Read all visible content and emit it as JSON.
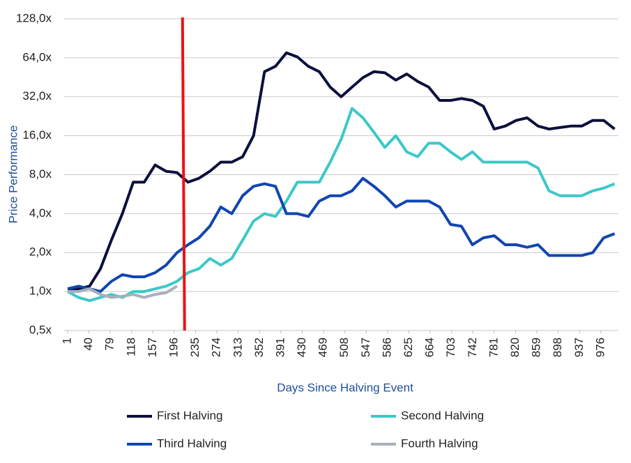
{
  "chart_data": {
    "type": "line",
    "y_label": "Price Performance",
    "x_label": "Days Since Halving Event",
    "log_scale": true,
    "grid": true,
    "legend": "bottom",
    "xlim": [
      1,
      1008
    ],
    "xticks": [
      1,
      40,
      79,
      118,
      157,
      196,
      235,
      274,
      313,
      352,
      391,
      430,
      469,
      508,
      547,
      586,
      625,
      664,
      703,
      742,
      781,
      820,
      859,
      898,
      937,
      976
    ],
    "ylim": [
      0.5,
      128
    ],
    "yticks": [
      {
        "value": 0.5,
        "label": "0,5x"
      },
      {
        "value": 1,
        "label": "1,0x"
      },
      {
        "value": 2,
        "label": "2,0x"
      },
      {
        "value": 4,
        "label": "4,0x"
      },
      {
        "value": 8,
        "label": "8,0x"
      },
      {
        "value": 16,
        "label": "16,0x"
      },
      {
        "value": 32,
        "label": "32,0x"
      },
      {
        "value": 64,
        "label": "64,0x"
      },
      {
        "value": 128,
        "label": "128,0x"
      }
    ],
    "vline": {
      "x": 211,
      "color": "#ee1111"
    },
    "x": [
      1,
      21,
      41,
      61,
      81,
      101,
      121,
      141,
      161,
      181,
      201,
      221,
      241,
      261,
      281,
      301,
      321,
      341,
      361,
      381,
      401,
      421,
      441,
      461,
      481,
      501,
      521,
      541,
      561,
      581,
      601,
      621,
      641,
      661,
      681,
      701,
      721,
      741,
      761,
      781,
      801,
      821,
      841,
      861,
      881,
      901,
      921,
      941,
      961,
      981,
      1001
    ],
    "series": [
      {
        "name": "First Halving",
        "color": "#0d0f3d",
        "values": [
          1.05,
          1.05,
          1.1,
          1.5,
          2.5,
          4,
          7,
          7,
          9.5,
          8.5,
          8.3,
          7,
          7.5,
          8.5,
          10,
          10,
          11,
          16,
          50,
          55,
          70,
          65,
          55,
          50,
          38,
          32,
          38,
          45,
          50,
          49,
          43,
          48,
          42,
          38,
          30,
          30,
          31,
          30,
          27,
          18,
          19,
          21,
          22,
          19,
          18,
          18.5,
          19,
          19,
          21,
          21,
          18
        ]
      },
      {
        "name": "Second Halving",
        "color": "#3cc8c8",
        "values": [
          1,
          0.9,
          0.85,
          0.9,
          0.95,
          0.9,
          1,
          1,
          1.05,
          1.1,
          1.2,
          1.4,
          1.5,
          1.8,
          1.6,
          1.8,
          2.5,
          3.5,
          4,
          3.8,
          5,
          7,
          7,
          7,
          10,
          15,
          26,
          22,
          17,
          13,
          16,
          12,
          11,
          14,
          14,
          12,
          10.5,
          12,
          10,
          10,
          10,
          10,
          10,
          9,
          6,
          5.5,
          5.5,
          5.5,
          6,
          6.3,
          6.8
        ]
      },
      {
        "name": "Third Halving",
        "color": "#1046b0",
        "values": [
          1.05,
          1.1,
          1.05,
          1,
          1.2,
          1.35,
          1.3,
          1.3,
          1.4,
          1.6,
          2,
          2.3,
          2.6,
          3.2,
          4.5,
          4,
          5.5,
          6.5,
          6.8,
          6.5,
          4,
          4,
          3.8,
          5,
          5.5,
          5.5,
          6,
          7.5,
          6.5,
          5.5,
          4.5,
          5,
          5,
          5,
          4.5,
          3.3,
          3.2,
          2.3,
          2.6,
          2.7,
          2.3,
          2.3,
          2.2,
          2.3,
          1.9,
          1.9,
          1.9,
          1.9,
          2,
          2.6,
          2.8
        ]
      },
      {
        "name": "Fourth Halving",
        "color": "#a8b0bc",
        "values": [
          1,
          1,
          1.05,
          0.95,
          0.9,
          0.92,
          0.95,
          0.9,
          0.95,
          0.98,
          1.1,
          null,
          null,
          null,
          null,
          null,
          null,
          null,
          null,
          null,
          null,
          null,
          null,
          null,
          null,
          null,
          null,
          null,
          null,
          null,
          null,
          null,
          null,
          null,
          null,
          null,
          null,
          null,
          null,
          null,
          null,
          null,
          null,
          null,
          null,
          null,
          null,
          null,
          null,
          null,
          null
        ]
      }
    ]
  }
}
